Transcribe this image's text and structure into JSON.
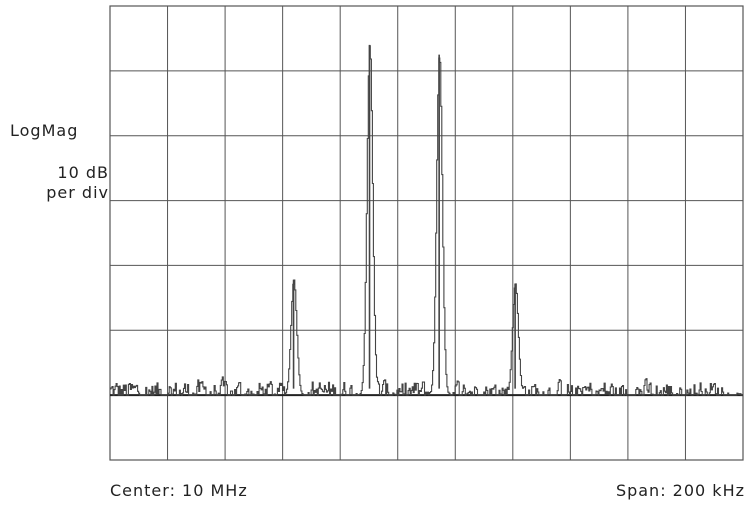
{
  "chart_data": {
    "type": "line",
    "title": "",
    "ylabel_mode": "LogMag",
    "ylabel_scale_line1": "10 dB",
    "ylabel_scale_line2": "per div",
    "center_label": "Center: 10 MHz",
    "span_label": "Span: 200 kHz",
    "x_unit": "kHz offset from center",
    "xlim": [
      -100,
      100
    ],
    "ylim_divisions": [
      -1,
      6
    ],
    "x_divisions": 11,
    "y_divisions": 7,
    "grid": true,
    "reference_level_div": 0,
    "noise_floor_div": 0.05,
    "series": [
      {
        "peaks": [
          {
            "x": -42,
            "y_div": 1.78
          },
          {
            "x": -18,
            "y_div": 5.4
          },
          {
            "x": 4,
            "y_div": 5.25
          },
          {
            "x": 28,
            "y_div": 1.72
          }
        ]
      }
    ],
    "trace_color": "#444444",
    "grid_color": "#555555"
  }
}
